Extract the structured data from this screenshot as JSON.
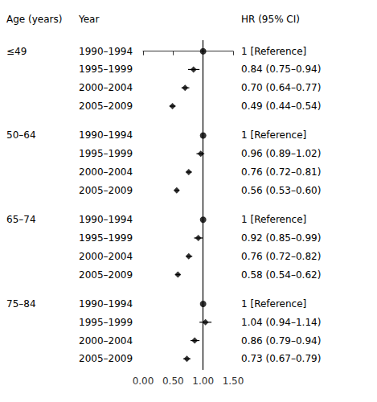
{
  "chart_data": {
    "type": "forest",
    "columns": [
      "Age (years)",
      "Year",
      "HR (95% CI)"
    ],
    "groups": [
      {
        "name": "≤49",
        "rows": [
          {
            "year": "1990–1994",
            "hr": 1.0,
            "ci_lo": 1.0,
            "ci_hi": 1.0,
            "label": "1 [Reference]",
            "marker": "circle"
          },
          {
            "year": "1995–1999",
            "hr": 0.84,
            "ci_lo": 0.75,
            "ci_hi": 0.94,
            "label": "0.84 (0.75–0.94)",
            "marker": "diamond"
          },
          {
            "year": "2000–2004",
            "hr": 0.7,
            "ci_lo": 0.64,
            "ci_hi": 0.77,
            "label": "0.70 (0.64–0.77)",
            "marker": "diamond"
          },
          {
            "year": "2005–2009",
            "hr": 0.49,
            "ci_lo": 0.44,
            "ci_hi": 0.54,
            "label": "0.49 (0.44–0.54)",
            "marker": "diamond"
          }
        ]
      },
      {
        "name": "50–64",
        "rows": [
          {
            "year": "1990–1994",
            "hr": 1.0,
            "ci_lo": 1.0,
            "ci_hi": 1.0,
            "label": "1 [Reference]",
            "marker": "circle"
          },
          {
            "year": "1995–1999",
            "hr": 0.96,
            "ci_lo": 0.89,
            "ci_hi": 1.02,
            "label": "0.96 (0.89–1.02)",
            "marker": "diamond"
          },
          {
            "year": "2000–2004",
            "hr": 0.76,
            "ci_lo": 0.72,
            "ci_hi": 0.81,
            "label": "0.76 (0.72–0.81)",
            "marker": "diamond"
          },
          {
            "year": "2005–2009",
            "hr": 0.56,
            "ci_lo": 0.53,
            "ci_hi": 0.6,
            "label": "0.56 (0.53–0.60)",
            "marker": "diamond"
          }
        ]
      },
      {
        "name": "65–74",
        "rows": [
          {
            "year": "1990–1994",
            "hr": 1.0,
            "ci_lo": 1.0,
            "ci_hi": 1.0,
            "label": "1 [Reference]",
            "marker": "circle"
          },
          {
            "year": "1995–1999",
            "hr": 0.92,
            "ci_lo": 0.85,
            "ci_hi": 0.99,
            "label": "0.92 (0.85–0.99)",
            "marker": "diamond"
          },
          {
            "year": "2000–2004",
            "hr": 0.76,
            "ci_lo": 0.72,
            "ci_hi": 0.82,
            "label": "0.76 (0.72–0.82)",
            "marker": "diamond"
          },
          {
            "year": "2005–2009",
            "hr": 0.58,
            "ci_lo": 0.54,
            "ci_hi": 0.62,
            "label": "0.58 (0.54–0.62)",
            "marker": "diamond"
          }
        ]
      },
      {
        "name": "75–84",
        "rows": [
          {
            "year": "1990–1994",
            "hr": 1.0,
            "ci_lo": 1.0,
            "ci_hi": 1.0,
            "label": "1 [Reference]",
            "marker": "circle"
          },
          {
            "year": "1995–1999",
            "hr": 1.04,
            "ci_lo": 0.94,
            "ci_hi": 1.14,
            "label": "1.04 (0.94–1.14)",
            "marker": "diamond"
          },
          {
            "year": "2000–2004",
            "hr": 0.86,
            "ci_lo": 0.79,
            "ci_hi": 0.94,
            "label": "0.86 (0.79–0.94)",
            "marker": "diamond"
          },
          {
            "year": "2005–2009",
            "hr": 0.73,
            "ci_lo": 0.67,
            "ci_hi": 0.79,
            "label": "0.73 (0.67–0.79)",
            "marker": "diamond"
          }
        ]
      }
    ],
    "xlim": [
      0.0,
      1.5
    ],
    "xticks": [
      {
        "value": 0.0,
        "label": "0.00"
      },
      {
        "value": 0.5,
        "label": "0.50"
      },
      {
        "value": 1.0,
        "label": "1.00"
      },
      {
        "value": 1.5,
        "label": "1.50"
      }
    ],
    "reference_line": 1.0,
    "color": "black",
    "grid": false
  }
}
